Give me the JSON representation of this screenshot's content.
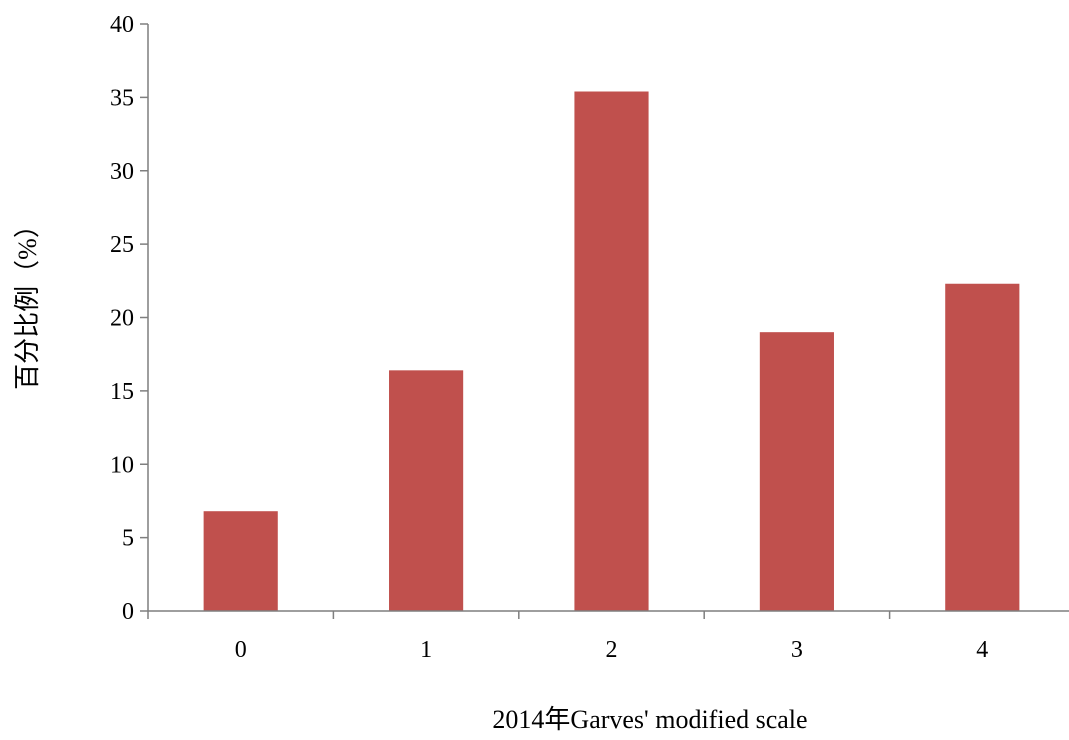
{
  "chart_data": {
    "type": "bar",
    "title": "",
    "xlabel": "2014年Garves' modified scale",
    "ylabel": "百分比例（%）",
    "categories": [
      "0",
      "1",
      "2",
      "3",
      "4"
    ],
    "series": [
      {
        "values": [
          6.8,
          16.4,
          35.4,
          19.0,
          22.3
        ]
      }
    ],
    "ylim": [
      0,
      40
    ],
    "yticks": [
      0,
      5,
      10,
      15,
      20,
      25,
      30,
      35,
      40
    ],
    "ytick_labels": [
      "0",
      "5",
      "10",
      "15",
      "20",
      "25",
      "30",
      "35",
      "40"
    ],
    "grid": false,
    "legend": "none",
    "bar_color": "#C0504D",
    "axis_color": "#7F7F7F"
  }
}
